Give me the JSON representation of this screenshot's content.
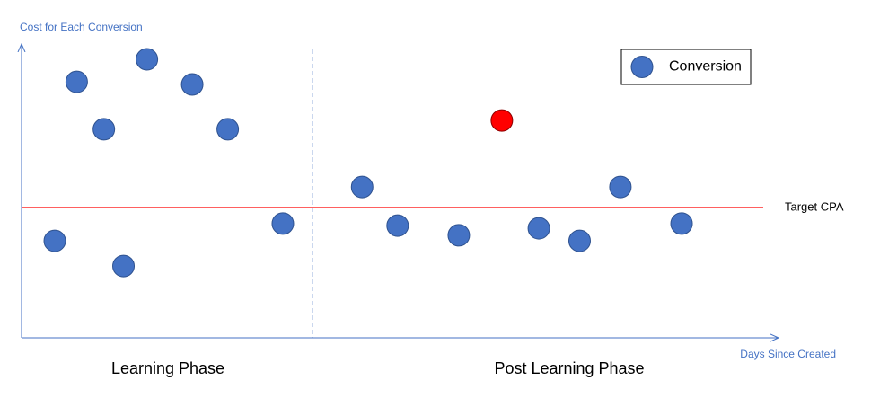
{
  "chart_data": {
    "type": "scatter",
    "y_label": "Cost for Each Conversion",
    "x_label": "Days Since Created",
    "xlim": [
      0,
      100
    ],
    "ylim": [
      0,
      100
    ],
    "legend": "top-right",
    "series": [
      {
        "name": "Conversion",
        "color": "#4472c4",
        "x": [
          4.4,
          7.3,
          10.9,
          13.5,
          16.6,
          22.6,
          27.3,
          34.6,
          45.1,
          49.8,
          57.9,
          63.6,
          68.5,
          73.9,
          79.3,
          87.4
        ],
        "values": [
          33.1,
          87.4,
          71.2,
          24.5,
          95.1,
          86.5,
          71.2,
          39.0,
          51.5,
          38.3,
          35.0,
          74.2,
          37.4,
          33.1,
          51.5,
          39.0
        ],
        "point_colors": [
          "#4472c4",
          "#4472c4",
          "#4472c4",
          "#4472c4",
          "#4472c4",
          "#4472c4",
          "#4472c4",
          "#4472c4",
          "#4472c4",
          "#4472c4",
          "#4472c4",
          "#ff0000",
          "#4472c4",
          "#4472c4",
          "#4472c4",
          "#4472c4"
        ]
      }
    ],
    "reference_line": {
      "label": "Target CPA",
      "value": 44.5,
      "color": "#ff0000"
    },
    "phase_divider": {
      "value": 38.5,
      "color": "#4472c4"
    },
    "annotations": [
      "Learning Phase",
      "Post Learning Phase"
    ]
  }
}
